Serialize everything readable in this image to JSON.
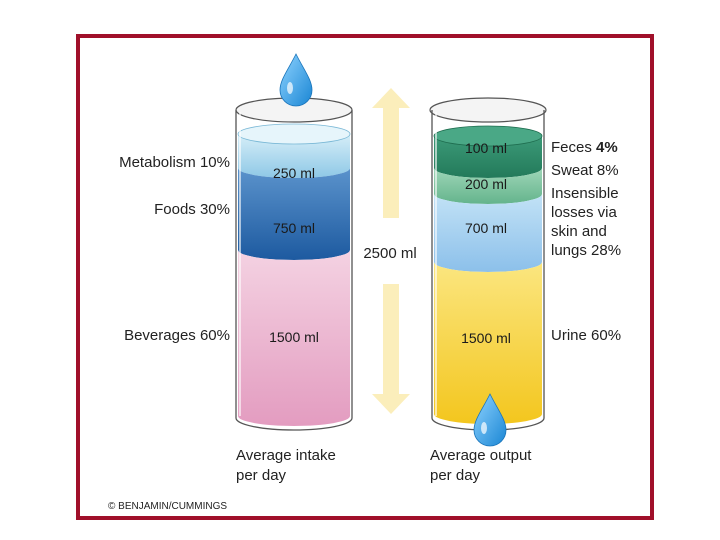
{
  "colors": {
    "frame": "#a0102a",
    "metabolism": "#a8d8ee",
    "foods": "#2f6fb5",
    "beverages": "#e9a8c8",
    "feces": "#2e8a68",
    "sweat": "#7cc4a0",
    "insensible": "#a6d2f0",
    "urine": "#f5d23a",
    "arrow": "#fbeebb",
    "drop": "#2aa0e6"
  },
  "total": "2500 ml",
  "intake": {
    "caption_line1": "Average intake",
    "caption_line2": "per day",
    "segments": [
      {
        "name": "Metabolism",
        "percent": 10,
        "percent_text": "10%",
        "volume": "250 ml",
        "volume_ml": 250
      },
      {
        "name": "Foods",
        "percent": 30,
        "percent_text": "30%",
        "volume": "750 ml",
        "volume_ml": 750
      },
      {
        "name": "Beverages",
        "percent": 60,
        "percent_text": "60%",
        "volume": "1500 ml",
        "volume_ml": 1500
      }
    ]
  },
  "output": {
    "caption_line1": "Average output",
    "caption_line2": "per day",
    "segments": [
      {
        "name": "Feces",
        "percent": 4,
        "percent_text": "4%",
        "volume": "100 ml",
        "volume_ml": 100
      },
      {
        "name": "Sweat",
        "percent": 8,
        "percent_text": "8%",
        "volume": "200 ml",
        "volume_ml": 200
      },
      {
        "name_line1": "Insensible",
        "name_line2": "losses via",
        "name_line3": "skin and",
        "name_line4": "lungs",
        "percent": 28,
        "percent_text": "28%",
        "volume": "700 ml",
        "volume_ml": 700
      },
      {
        "name": "Urine",
        "percent": 60,
        "percent_text": "60%",
        "volume": "1500 ml",
        "volume_ml": 1500
      }
    ]
  },
  "copyright": "© BENJAMIN/CUMMINGS"
}
